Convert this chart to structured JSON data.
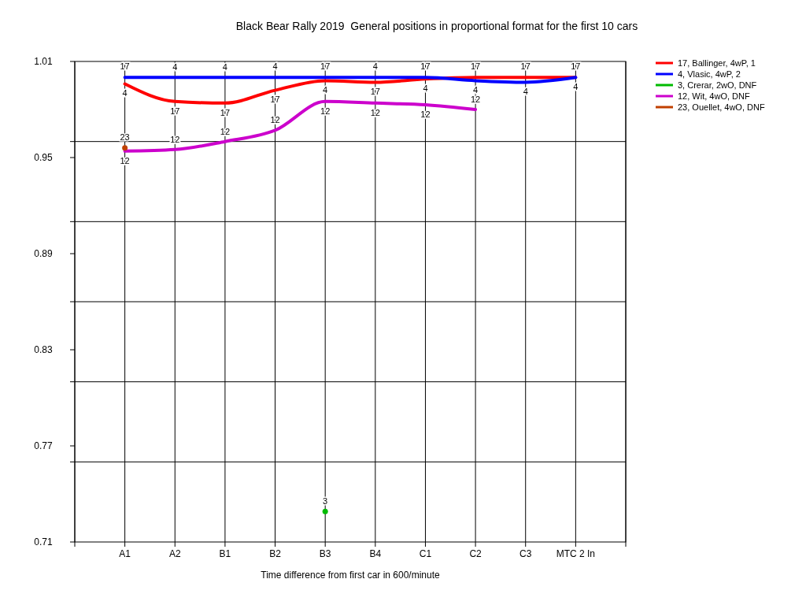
{
  "chart_data": {
    "type": "line",
    "title": "Black Bear Rally 2019  General positions in proportional format for the first 10 cars",
    "xlabel": "Time difference from first car in 600/minute",
    "categories": [
      null,
      "A1",
      "A2",
      "B1",
      "B2",
      "B3",
      "B4",
      "C1",
      "C2",
      "C3",
      "MTC 2 In",
      null
    ],
    "ylim": [
      0.71,
      1.01
    ],
    "yticks": [
      0.71,
      0.77,
      0.83,
      0.89,
      0.95,
      1.01,
      {
        "value": 0.76,
        "label": null
      },
      {
        "value": 0.81,
        "label": null
      },
      {
        "value": 0.86,
        "label": null
      },
      {
        "value": 0.91,
        "label": null
      },
      {
        "value": 0.96,
        "label": null
      }
    ],
    "grid": true,
    "legend": "top right",
    "line_style": "solid",
    "series": [
      {
        "name": "17, Ballinger, 4wP, 1",
        "color": "#ff0000",
        "values": [
          null,
          0.996,
          0.985,
          0.984,
          0.992,
          0.998,
          0.997,
          0.999,
          1.0,
          1.0,
          1.0,
          null
        ]
      },
      {
        "name": "4, Vlasic, 4wP, 2",
        "color": "#0000ff",
        "values": [
          null,
          1.0,
          1.0,
          1.0,
          1.0,
          1.0,
          1.0,
          1.0,
          0.998,
          0.997,
          1.0,
          null
        ]
      },
      {
        "name": "3, Crerar, 2wO, DNF",
        "color": "#00bb00",
        "marker": "circle",
        "values": [
          null,
          null,
          null,
          null,
          null,
          0.729,
          null,
          null,
          null,
          null,
          null,
          null
        ]
      },
      {
        "name": "12, Wit, 4wO, DNF",
        "color": "#cc00cc",
        "values": [
          null,
          0.954,
          0.955,
          0.96,
          0.967,
          0.985,
          0.984,
          0.983,
          0.98,
          null,
          null,
          null
        ]
      },
      {
        "name": "23, Ouellet, 4wO, DNF",
        "color": "#c04000",
        "marker": "circle",
        "values": [
          null,
          0.956,
          null,
          null,
          null,
          null,
          null,
          null,
          null,
          null,
          null,
          null
        ]
      }
    ],
    "annotations": [
      {
        "text": "17",
        "x": "A1",
        "y": 0.996
      },
      {
        "text": "4",
        "x": "A1",
        "y": 1.0
      },
      {
        "text": "23",
        "x": "A1",
        "y": 0.956
      },
      {
        "text": "12",
        "x": "A1",
        "y": 0.954
      },
      {
        "text": "4",
        "x": "A2",
        "y": 1.0
      },
      {
        "text": "17",
        "x": "A2",
        "y": 0.985
      },
      {
        "text": "12",
        "x": "A2",
        "y": 0.955
      },
      {
        "text": "4",
        "x": "B1",
        "y": 1.0
      },
      {
        "text": "17",
        "x": "B1",
        "y": 0.984
      },
      {
        "text": "12",
        "x": "B1",
        "y": 0.96
      },
      {
        "text": "4",
        "x": "B2",
        "y": 1.0
      },
      {
        "text": "17",
        "x": "B2",
        "y": 0.992
      },
      {
        "text": "12",
        "x": "B2",
        "y": 0.967
      },
      {
        "text": "17",
        "x": "B3",
        "y": 0.998
      },
      {
        "text": "4",
        "x": "B3",
        "y": 1.0
      },
      {
        "text": "12",
        "x": "B3",
        "y": 0.985
      },
      {
        "text": "3",
        "x": "B3",
        "y": 0.729
      },
      {
        "text": "4",
        "x": "B4",
        "y": 1.0
      },
      {
        "text": "17",
        "x": "B4",
        "y": 0.997
      },
      {
        "text": "12",
        "x": "B4",
        "y": 0.984
      },
      {
        "text": "17",
        "x": "C1",
        "y": 0.999
      },
      {
        "text": "4",
        "x": "C1",
        "y": 1.0
      },
      {
        "text": "12",
        "x": "C1",
        "y": 0.983
      },
      {
        "text": "17",
        "x": "C2",
        "y": 1.0
      },
      {
        "text": "4",
        "x": "C2",
        "y": 0.998
      },
      {
        "text": "12",
        "x": "C2",
        "y": 0.98
      },
      {
        "text": "17",
        "x": "C3",
        "y": 1.0
      },
      {
        "text": "4",
        "x": "C3",
        "y": 0.997
      },
      {
        "text": "17",
        "x": "MTC 2 In",
        "y": 1.0
      },
      {
        "text": "4",
        "x": "MTC 2 In",
        "y": 1.0
      }
    ]
  }
}
